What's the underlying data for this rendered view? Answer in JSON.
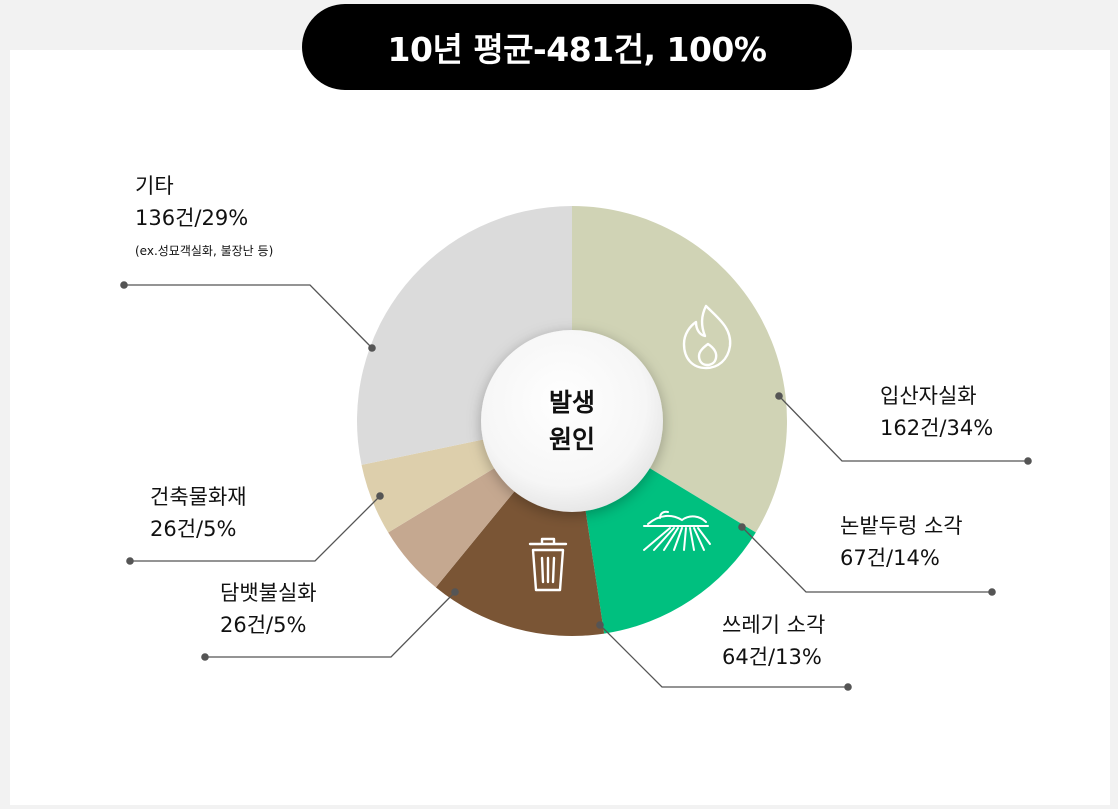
{
  "title": "10년 평균-481건, 100%",
  "center_label": {
    "line1": "발생",
    "line2": "원인"
  },
  "chart_data": {
    "type": "pie",
    "title": "10년 평균-481건, 100%",
    "total": 481,
    "slices": [
      {
        "label": "입산자실화",
        "count": 162,
        "percent": 34,
        "value_text": "162건/34%",
        "color": "#d0d3b5",
        "icon": "fire-icon"
      },
      {
        "label": "논밭두렁 소각",
        "count": 67,
        "percent": 14,
        "value_text": "67건/14%",
        "color": "#00c07f",
        "icon": "field-icon"
      },
      {
        "label": "쓰레기 소각",
        "count": 64,
        "percent": 13,
        "value_text": "64건/13%",
        "color": "#7a5535",
        "icon": "trash-icon"
      },
      {
        "label": "담뱃불실화",
        "count": 26,
        "percent": 5,
        "value_text": "26건/5%",
        "color": "#c5a890"
      },
      {
        "label": "건축물화재",
        "count": 26,
        "percent": 5,
        "value_text": "26건/5%",
        "color": "#ddcfac"
      },
      {
        "label": "기타",
        "count": 136,
        "percent": 29,
        "value_text": "136건/29%",
        "note": "(ex.성묘객실화, 불장난 등)",
        "color": "#dbdbdb"
      }
    ]
  }
}
